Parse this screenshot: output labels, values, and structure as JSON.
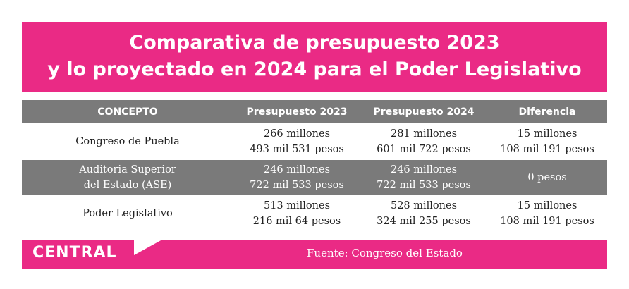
{
  "title": {
    "line1": "Comparativa de presupuesto 2023",
    "line2": "y lo proyectado en 2024 para el Poder Legislativo"
  },
  "table": {
    "headers": [
      "CONCEPTO",
      "Presupuesto 2023",
      "Presupuesto 2024",
      "Diferencia"
    ],
    "rows": [
      {
        "concepto": [
          "Congreso de Puebla"
        ],
        "p2023": [
          "266 millones",
          "493 mil 531 pesos"
        ],
        "p2024": [
          "281 millones",
          "601 mil 722 pesos"
        ],
        "diferencia": [
          "15 millones",
          "108 mil 191 pesos"
        ]
      },
      {
        "concepto": [
          "Auditoria Superior",
          "del Estado (ASE)"
        ],
        "p2023": [
          "246 millones",
          "722 mil 533 pesos"
        ],
        "p2024": [
          "246 millones",
          "722 mil 533 pesos"
        ],
        "diferencia": [
          "0 pesos"
        ]
      },
      {
        "concepto": [
          "Poder Legislativo"
        ],
        "p2023": [
          "513 millones",
          "216 mil 64 pesos"
        ],
        "p2024": [
          "528 millones",
          "324 mil 255 pesos"
        ],
        "diferencia": [
          "15 millones",
          "108 mil 191 pesos"
        ]
      }
    ]
  },
  "footer": {
    "logo": "CENTRAL",
    "source": "Fuente: Congreso del Estado"
  },
  "colors": {
    "brand_pink": "#ea2a85",
    "header_gray": "#7a7a7a"
  }
}
